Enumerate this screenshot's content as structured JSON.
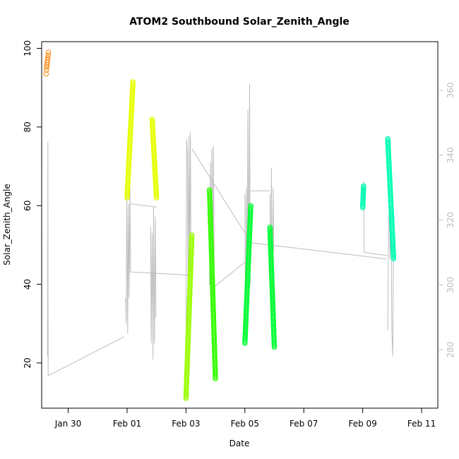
{
  "chart_data": {
    "type": "scatter",
    "title": "ATOM2 Southbound Solar_Zenith_Angle",
    "xlabel": "Date",
    "ylabel": "Solar_Zenith_Angle",
    "x_unit": "days since 2016-01-29 00:00",
    "x_ticks": [
      {
        "label": "Jan 30",
        "value": 1
      },
      {
        "label": "Feb 01",
        "value": 3
      },
      {
        "label": "Feb 03",
        "value": 5
      },
      {
        "label": "Feb 05",
        "value": 7
      },
      {
        "label": "Feb 07",
        "value": 9
      },
      {
        "label": "Feb 09",
        "value": 11
      },
      {
        "label": "Feb 11",
        "value": 13
      }
    ],
    "xlim": [
      0.1,
      13.55
    ],
    "ylim": [
      8.5,
      101.7
    ],
    "y_ticks": [
      20,
      40,
      60,
      80,
      100
    ],
    "y2lim": [
      262,
      375
    ],
    "y2_ticks": [
      280,
      300,
      320,
      340,
      360
    ],
    "grid": false,
    "colors": {
      "orange": "#ff8000",
      "yellow": "#e6ff00",
      "yellowgreen": "#99ff00",
      "green": "#33ff00",
      "brightgreen": "#00ff33",
      "aqua": "#00ffb3",
      "trace": "#bdbdbd"
    },
    "series": [
      {
        "color": "#ff8000",
        "x_start": 0.25,
        "x_end": 0.33,
        "y_start": 93.5,
        "y_end": 99,
        "x": [
          0.25,
          0.26,
          0.27,
          0.28,
          0.29,
          0.3,
          0.31,
          0.32,
          0.33
        ],
        "y": [
          93.5,
          94.5,
          95.2,
          95.8,
          96.4,
          97,
          97.6,
          98.3,
          99
        ]
      },
      {
        "color": "#e6ff00",
        "x_start": 3.0,
        "x_end": 3.2,
        "y_start": 62,
        "y_end": 91.5
      },
      {
        "color": "#e6ff00",
        "x_start": 3.85,
        "x_end": 4.0,
        "y_start": 82,
        "y_end": 62
      },
      {
        "color": "#99ff00",
        "x_start": 5.0,
        "x_end": 5.2,
        "y_start": 11,
        "y_end": 52.5
      },
      {
        "color": "#33ff00",
        "x_start": 5.8,
        "x_end": 6.0,
        "y_start": 64,
        "y_end": 16
      },
      {
        "color": "#00ff33",
        "x_start": 7.0,
        "x_end": 7.2,
        "y_start": 25,
        "y_end": 60
      },
      {
        "color": "#00ff33",
        "x_start": 7.85,
        "x_end": 8.0,
        "y_start": 54.5,
        "y_end": 24
      },
      {
        "color": "#00ffb3",
        "x_start": 11.0,
        "x_end": 11.03,
        "y_start": 59.5,
        "y_end": 65
      },
      {
        "color": "#00ffb3",
        "x_start": 11.85,
        "x_end": 12.05,
        "y_start": 77,
        "y_end": 46.5
      }
    ],
    "heading_trace": {
      "color": "#bdbdbd",
      "points": [
        [
          0.3,
          278
        ],
        [
          0.31,
          344
        ],
        [
          0.32,
          272
        ],
        [
          2.95,
          296
        ],
        [
          2.97,
          288
        ],
        [
          2.99,
          328
        ],
        [
          3.0,
          318
        ],
        [
          3.02,
          285
        ],
        [
          3.05,
          325
        ],
        [
          3.07,
          296
        ],
        [
          3.1,
          330
        ],
        [
          3.12,
          304
        ],
        [
          3.8,
          318
        ],
        [
          3.82,
          282
        ],
        [
          3.85,
          316
        ],
        [
          3.88,
          277
        ],
        [
          3.9,
          324
        ],
        [
          3.93,
          282
        ],
        [
          3.96,
          321
        ],
        [
          3.98,
          290
        ],
        [
          5.0,
          278
        ],
        [
          5.02,
          345
        ],
        [
          5.05,
          340
        ],
        [
          5.07,
          298
        ],
        [
          5.1,
          346
        ],
        [
          5.12,
          300
        ],
        [
          5.15,
          347
        ],
        [
          5.17,
          304
        ],
        [
          5.8,
          300
        ],
        [
          5.83,
          338
        ],
        [
          5.85,
          298
        ],
        [
          5.88,
          342
        ],
        [
          5.9,
          290
        ],
        [
          5.93,
          343
        ],
        [
          5.96,
          302
        ],
        [
          7.0,
          328
        ],
        [
          7.02,
          284
        ],
        [
          7.05,
          330
        ],
        [
          7.08,
          290
        ],
        [
          7.1,
          354
        ],
        [
          7.13,
          297
        ],
        [
          7.16,
          362
        ],
        [
          7.18,
          300
        ],
        [
          7.85,
          328
        ],
        [
          7.88,
          295
        ],
        [
          7.9,
          336
        ],
        [
          7.93,
          288
        ],
        [
          7.96,
          330
        ],
        [
          7.98,
          310
        ],
        [
          11.0,
          326
        ],
        [
          11.02,
          332
        ],
        [
          11.05,
          310
        ],
        [
          11.85,
          286
        ],
        [
          11.88,
          318
        ],
        [
          11.9,
          325
        ],
        [
          11.93,
          308
        ],
        [
          11.96,
          324
        ],
        [
          11.99,
          286
        ],
        [
          12.02,
          278
        ],
        [
          12.05,
          322
        ]
      ],
      "segments": [
        [
          [
            0.32,
            272
          ],
          [
            2.9,
            284
          ]
        ],
        [
          [
            3.1,
            325
          ],
          [
            4.0,
            324
          ]
        ],
        [
          [
            3.1,
            304
          ],
          [
            5.15,
            303
          ]
        ],
        [
          [
            5.2,
            342
          ],
          [
            7.0,
            316
          ]
        ],
        [
          [
            5.9,
            299
          ],
          [
            7.0,
            307
          ]
        ],
        [
          [
            7.2,
            329
          ],
          [
            7.85,
            329
          ]
        ],
        [
          [
            7.2,
            313
          ],
          [
            11.8,
            308
          ]
        ],
        [
          [
            11.05,
            310
          ],
          [
            11.85,
            309
          ]
        ]
      ]
    }
  }
}
